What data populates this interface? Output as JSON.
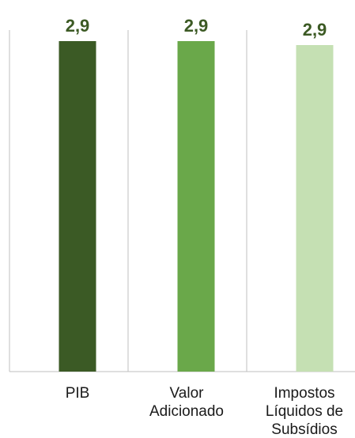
{
  "chart_data": {
    "type": "bar",
    "title": "",
    "xlabel": "",
    "ylabel": "",
    "categories": [
      "PIB",
      "Valor Adicionado",
      "Impostos Líquidos de Subsídios"
    ],
    "category_lines": [
      [
        "PIB"
      ],
      [
        "Valor",
        "Adicionado"
      ],
      [
        "Impostos",
        "Líquidos de",
        "Subsídios"
      ]
    ],
    "values": [
      2.9,
      2.9,
      2.9
    ],
    "value_labels": [
      "2,9",
      "2,9",
      "2,9"
    ],
    "ylim": [
      0,
      2.9
    ],
    "bar_colors": [
      "#3b5a25",
      "#6aa84a",
      "#c5e0b3"
    ],
    "grid": false,
    "legend": "none"
  }
}
